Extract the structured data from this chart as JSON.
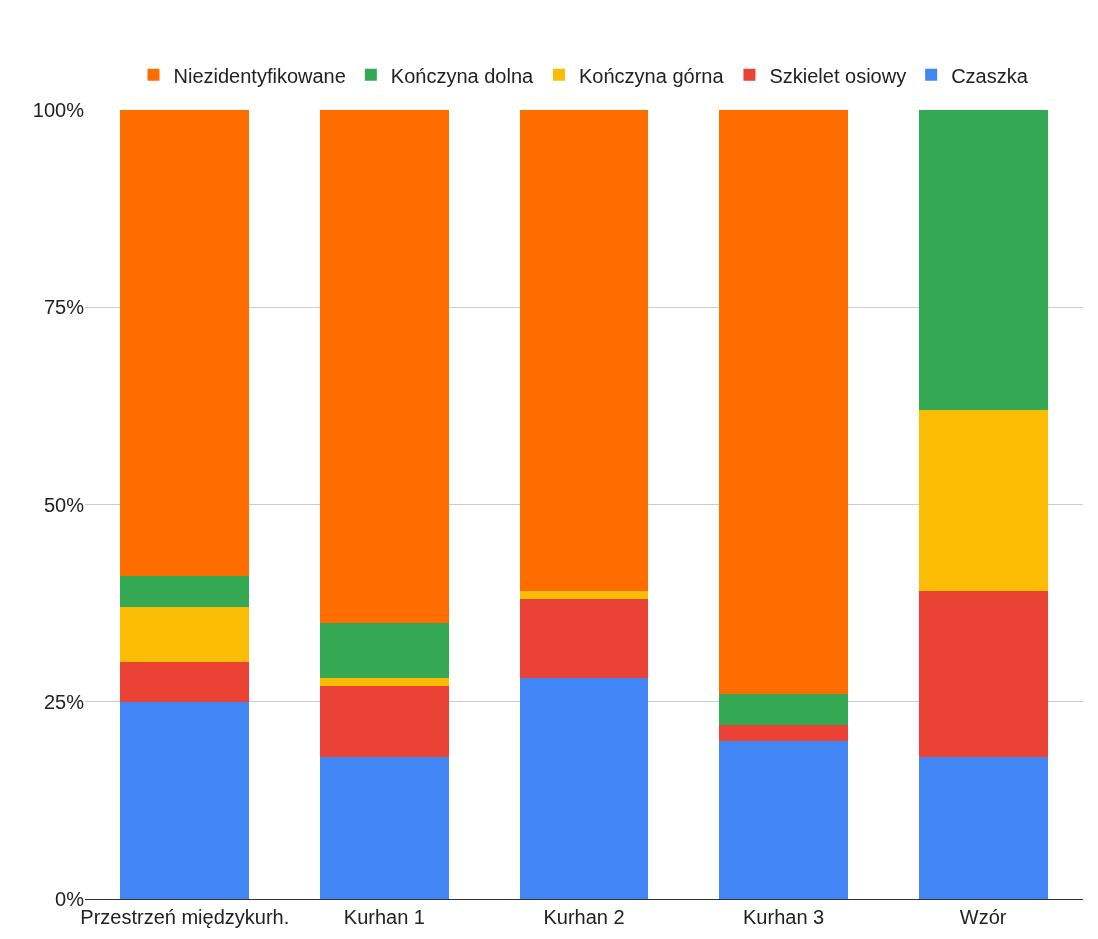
{
  "chart_data": {
    "type": "bar",
    "stacked": true,
    "categories": [
      "Przestrzeń międzykurh.",
      "Kurhan 1",
      "Kurhan 2",
      "Kurhan 3",
      "Wzór"
    ],
    "series": [
      {
        "name": "Czaszka",
        "color": "#4285f4",
        "values": [
          25,
          18,
          28,
          20,
          18
        ]
      },
      {
        "name": "Szkielet osiowy",
        "color": "#ea4335",
        "values": [
          5,
          9,
          10,
          2,
          21
        ]
      },
      {
        "name": "Kończyna górna",
        "color": "#fbbc04",
        "values": [
          7,
          1,
          1,
          0,
          23
        ]
      },
      {
        "name": "Kończyna dolna",
        "color": "#34a853",
        "values": [
          4,
          7,
          0,
          4,
          38
        ]
      },
      {
        "name": "Niezidentyfikowane",
        "color": "#ff6d01",
        "values": [
          59,
          65,
          61,
          74,
          0
        ]
      }
    ],
    "ylim": [
      0,
      100
    ],
    "yticks": [
      {
        "value": 0,
        "label": "0%"
      },
      {
        "value": 25,
        "label": "25%"
      },
      {
        "value": 50,
        "label": "50%"
      },
      {
        "value": 75,
        "label": "75%"
      },
      {
        "value": 100,
        "label": "100%"
      }
    ],
    "grid": "y",
    "legend": "top"
  }
}
